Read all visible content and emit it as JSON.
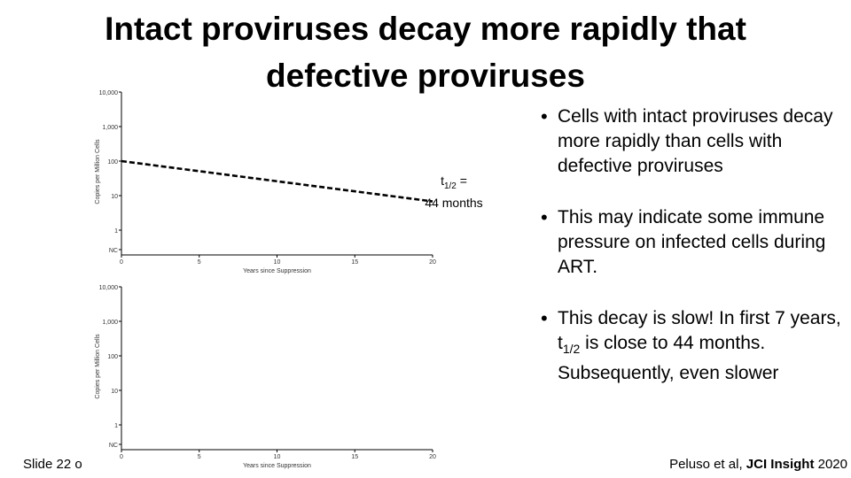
{
  "slide": {
    "title_line1": "Intact proviruses decay more rapidly that",
    "title_line2": "defective proviruses",
    "slide_number": "Slide 22 o",
    "citation_author": "Peluso et al, ",
    "citation_journal": "JCI Insight",
    "citation_year": " 2020"
  },
  "annotation": {
    "t_prefix": "t",
    "t_sub": "1/2",
    "t_eq": " =",
    "months": "44 months"
  },
  "bullets": [
    {
      "parts": [
        "Cells with intact proviruses decay more rapidly than cells with defective proviruses"
      ]
    },
    {
      "parts": [
        "This may indicate some immune pressure on infected cells during ART."
      ]
    },
    {
      "parts": [
        "This decay is slow!  In first 7 years, t",
        "1/2",
        " is close to 44 months.  Subsequently, even slower"
      ]
    }
  ],
  "chart_data": [
    {
      "type": "line",
      "xlabel": "Years since Suppression",
      "ylabel": "Copies per Million Cells",
      "x_ticks": [
        "0",
        "5",
        "10",
        "15",
        "20"
      ],
      "y_ticks": [
        "NC",
        "1",
        "10",
        "100",
        "1,000",
        "10,000"
      ],
      "xlim": [
        0,
        20
      ],
      "y_scale": "log",
      "series": [
        {
          "style": "dashed",
          "color": "#000000",
          "x": [
            0,
            20
          ],
          "y": [
            100,
            6.8
          ]
        }
      ]
    },
    {
      "type": "line",
      "xlabel": "Years since Suppression",
      "ylabel": "Copies per Million Cells",
      "x_ticks": [
        "0",
        "5",
        "10",
        "15",
        "20"
      ],
      "y_ticks": [
        "NC",
        "1",
        "10",
        "100",
        "1,000",
        "10,000"
      ],
      "xlim": [
        0,
        20
      ],
      "y_scale": "log",
      "series": []
    }
  ]
}
